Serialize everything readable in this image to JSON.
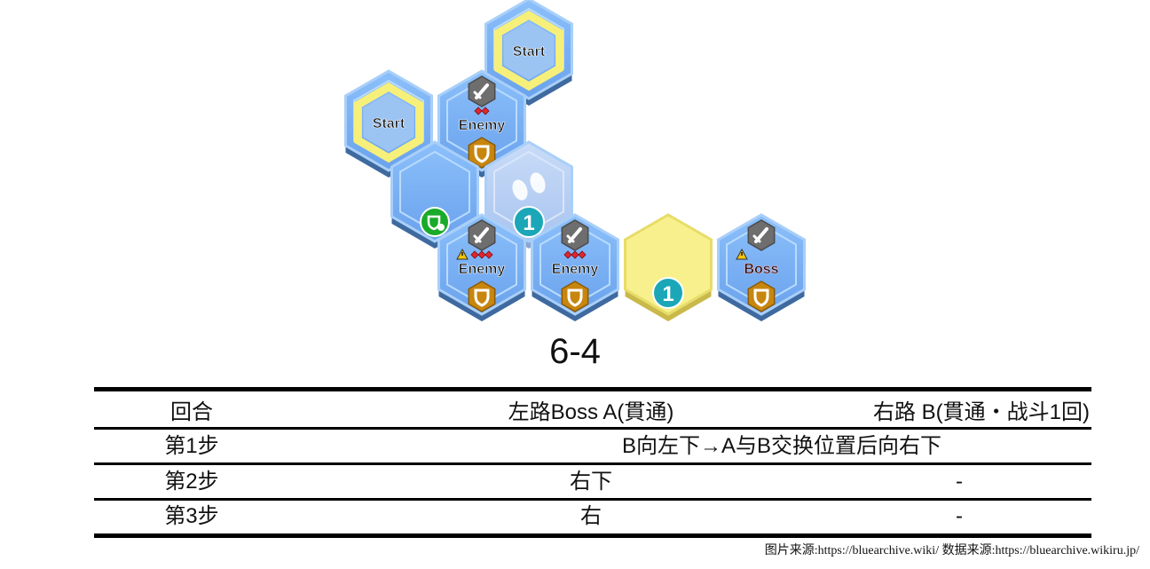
{
  "map": {
    "tiles": [
      {
        "id": "start-top",
        "kind": "start",
        "label": "Start"
      },
      {
        "id": "start-left",
        "kind": "start",
        "label": "Start"
      },
      {
        "id": "enemy-upper",
        "kind": "enemy",
        "label": "Enemy"
      },
      {
        "id": "plain-green",
        "kind": "plain",
        "icon": "shield-plus-icon"
      },
      {
        "id": "warp-1",
        "kind": "warp",
        "icon": "footprints-icon",
        "badge": "1"
      },
      {
        "id": "enemy-lower-left",
        "kind": "enemy",
        "label": "Enemy",
        "warning": true
      },
      {
        "id": "enemy-lower-mid",
        "kind": "enemy",
        "label": "Enemy"
      },
      {
        "id": "yellow-1",
        "kind": "yellow",
        "badge": "1"
      },
      {
        "id": "boss",
        "kind": "boss",
        "label": "Boss",
        "warning": true
      }
    ],
    "colors": {
      "tile": "#7eb2f5",
      "tile_dark": "#4a7fbf",
      "tile_base": "#3e6aa0",
      "start_ring": "#f6f07a",
      "yellow": "#f8f08c",
      "warp": "#b7cff3",
      "badge": "#1ba7b8",
      "enemy_shield": "#c8860e",
      "heal": "#1aaa2a",
      "boss_text": "#ffb3bd"
    }
  },
  "stage_title": "6-4",
  "table": {
    "headers": [
      "回合",
      "左路Boss A(貫通)",
      "右路 B(貫通・战斗1回)"
    ],
    "rows": [
      {
        "step": "第1步",
        "merged": "B向左下→A与B交换位置后向右下"
      },
      {
        "step": "第2步",
        "left": "右下",
        "right": "-"
      },
      {
        "step": "第3步",
        "left": "右",
        "right": "-"
      }
    ]
  },
  "footer": "图片来源:https://bluearchive.wiki/   数据来源:https://bluearchive.wikiru.jp/"
}
